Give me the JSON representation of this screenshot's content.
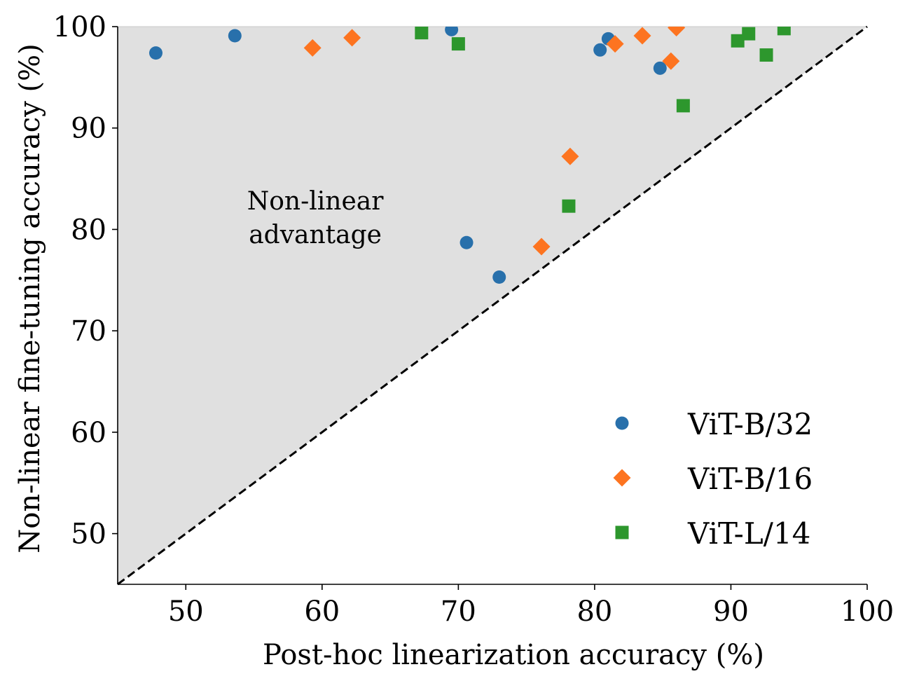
{
  "chart_data": {
    "type": "scatter",
    "title": "",
    "xlabel": "Post-hoc linearization accuracy (%)",
    "ylabel": "Non-linear fine-tuning accuracy (%)",
    "xlim": [
      45,
      100
    ],
    "ylim": [
      45,
      100
    ],
    "x_ticks": [
      50,
      60,
      70,
      80,
      90,
      100
    ],
    "y_ticks": [
      50,
      60,
      70,
      80,
      90,
      100
    ],
    "grid": false,
    "legend_position": "bottom-right",
    "annotation": {
      "lines": [
        "Non-linear",
        "advantage"
      ],
      "x": 59.5,
      "y": 81.0
    },
    "reference_line": {
      "style": "dashed",
      "from": [
        45,
        45
      ],
      "to": [
        100,
        100
      ],
      "color": "#000000"
    },
    "shaded_region": {
      "description": "region above y=x",
      "color": "#e0e0e0"
    },
    "series": [
      {
        "name": "ViT-B/32",
        "marker": "circle",
        "color": "#2870ab",
        "points": [
          [
            47.8,
            97.4
          ],
          [
            53.6,
            99.1
          ],
          [
            69.5,
            99.7
          ],
          [
            80.4,
            97.7
          ],
          [
            81.0,
            98.8
          ],
          [
            84.8,
            95.9
          ],
          [
            70.6,
            78.7
          ],
          [
            73.0,
            75.3
          ]
        ]
      },
      {
        "name": "ViT-B/16",
        "marker": "diamond",
        "color": "#fd7420",
        "points": [
          [
            59.3,
            97.9
          ],
          [
            62.2,
            98.9
          ],
          [
            81.5,
            98.3
          ],
          [
            83.5,
            99.1
          ],
          [
            86.0,
            99.9
          ],
          [
            85.6,
            96.6
          ],
          [
            78.2,
            87.2
          ],
          [
            76.1,
            78.3
          ]
        ]
      },
      {
        "name": "ViT-L/14",
        "marker": "square",
        "color": "#2d972d",
        "points": [
          [
            67.3,
            99.4
          ],
          [
            70.0,
            98.3
          ],
          [
            90.5,
            98.6
          ],
          [
            91.3,
            99.3
          ],
          [
            93.9,
            99.8
          ],
          [
            92.6,
            97.2
          ],
          [
            86.5,
            92.2
          ],
          [
            78.1,
            82.3
          ]
        ]
      }
    ]
  }
}
